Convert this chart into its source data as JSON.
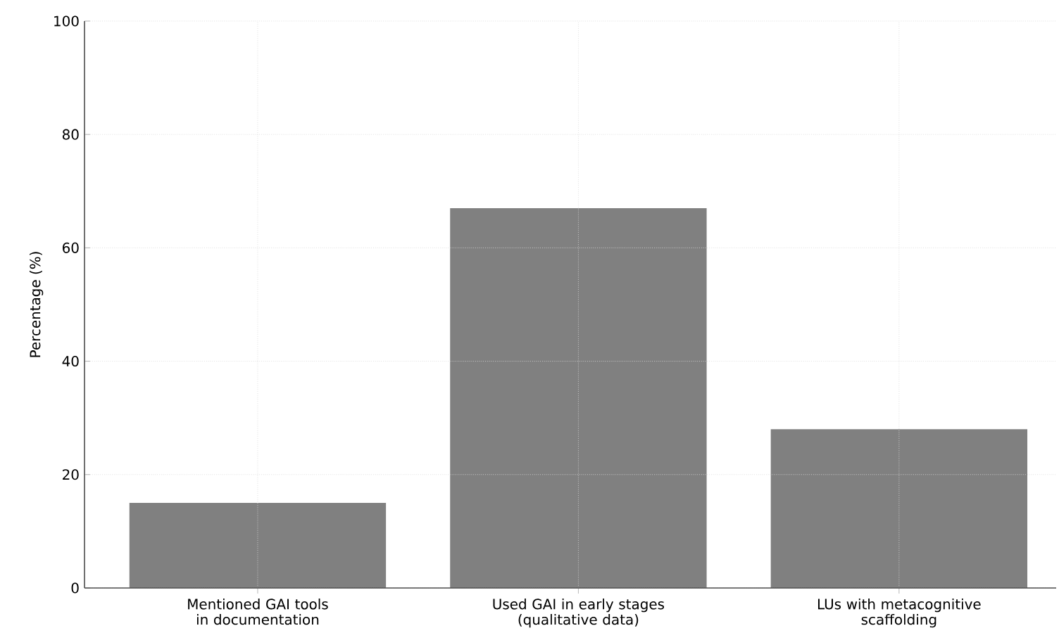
{
  "chart_data": {
    "type": "bar",
    "ylabel": "Percentage (%)",
    "categories": [
      "Mentioned GAI tools in documentation",
      "Used GAI in early stages (qualitative data)",
      "LUs with metacognitive scaffolding"
    ],
    "values": [
      15,
      67,
      28
    ],
    "color": "#808080",
    "ylim": [
      0,
      100
    ],
    "yticks": [
      0,
      20,
      40,
      60,
      80,
      100
    ],
    "grid": true
  }
}
